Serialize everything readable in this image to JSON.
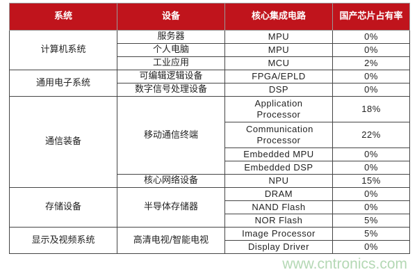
{
  "header": {
    "system": "系统",
    "device": "设备",
    "ic": "核心集成电路",
    "share": "国产芯片占有率"
  },
  "header_color": "#c0141c",
  "groups": [
    {
      "system": "计算机系统",
      "devices": [
        {
          "name": "服务器",
          "chips": [
            {
              "ic": "MPU",
              "share": "0%"
            }
          ]
        },
        {
          "name": "个人电脑",
          "chips": [
            {
              "ic": "MPU",
              "share": "0%"
            }
          ]
        },
        {
          "name": "工业应用",
          "chips": [
            {
              "ic": "MCU",
              "share": "2%"
            }
          ]
        }
      ]
    },
    {
      "system": "通用电子系统",
      "devices": [
        {
          "name": "可编辑逻辑设备",
          "chips": [
            {
              "ic": "FPGA/EPLD",
              "share": "0%"
            }
          ]
        },
        {
          "name": "数字信号处理设备",
          "chips": [
            {
              "ic": "DSP",
              "share": "0%"
            }
          ]
        }
      ]
    },
    {
      "system": "通信装备",
      "devices": [
        {
          "name": "移动通信终端",
          "chips": [
            {
              "ic": "Application Processor",
              "share": "18%"
            },
            {
              "ic": "Communication Processor",
              "share": "22%"
            },
            {
              "ic": "Embedded MPU",
              "share": "0%"
            },
            {
              "ic": "Embedded DSP",
              "share": "0%"
            }
          ]
        },
        {
          "name": "核心网络设备",
          "chips": [
            {
              "ic": "NPU",
              "share": "15%"
            }
          ]
        }
      ]
    },
    {
      "system": "存储设备",
      "devices": [
        {
          "name": "半导体存储器",
          "chips": [
            {
              "ic": "DRAM",
              "share": "0%"
            },
            {
              "ic": "NAND Flash",
              "share": "0%"
            },
            {
              "ic": "NOR Flash",
              "share": "5%"
            }
          ]
        }
      ]
    },
    {
      "system": "显示及视频系统",
      "devices": [
        {
          "name": "高清电视/智能电视",
          "chips": [
            {
              "ic": "Image Processor",
              "share": "5%"
            },
            {
              "ic": "Display Driver",
              "share": "0%"
            }
          ]
        }
      ]
    }
  ],
  "watermark": "www.cntronics.com"
}
